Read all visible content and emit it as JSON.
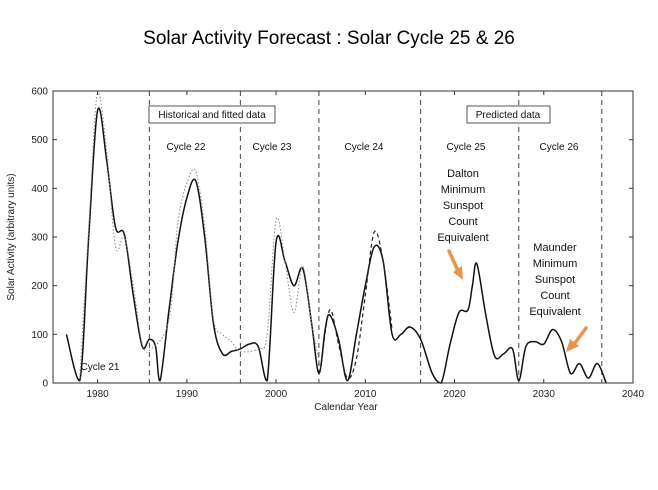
{
  "chart_data": {
    "type": "line",
    "title": "Solar Activity Forecast : Solar Cycle 25 & 26",
    "xlabel": "Calendar Year",
    "ylabel": "Solar Activity (arbitrary units)",
    "xlim": [
      1975,
      2040
    ],
    "ylim": [
      0,
      600
    ],
    "x_ticks": [
      1980,
      1990,
      2000,
      2010,
      2020,
      2030,
      2040
    ],
    "y_ticks": [
      0,
      100,
      200,
      300,
      400,
      500,
      600
    ],
    "grid": false,
    "separators": [
      1985.8,
      1996.0,
      2004.8,
      2016.2,
      2027.2,
      2036.5
    ],
    "region_labels": [
      "Historical and fitted data",
      "Predicted data"
    ],
    "cycle_labels": [
      "Cycle 21",
      "Cycle 22",
      "Cycle 23",
      "Cycle 24",
      "Cycle 25",
      "Cycle 26"
    ],
    "annotations": [
      [
        "Dalton",
        "Minimum",
        "Sunspot",
        "Count",
        "Equivalent"
      ],
      [
        "Maunder",
        "Minimum",
        "Sunspot",
        "Count",
        "Equivalent"
      ]
    ],
    "series": [
      {
        "style": "solid",
        "x": [
          1976.5,
          1978,
          1979,
          1980,
          1981,
          1982,
          1983,
          1984,
          1985,
          1985.8,
          1986.5,
          1987,
          1988,
          1989,
          1990,
          1991,
          1992,
          1993,
          1994,
          1995,
          1996,
          1997,
          1998,
          1999,
          2000,
          2001,
          2002,
          2003,
          2004,
          2004.8,
          2005.5,
          2006,
          2007,
          2008,
          2009,
          2010,
          2011,
          2012,
          2013,
          2014,
          2015,
          2016.2,
          2017.5,
          2018.5,
          2019.5,
          2020.5,
          2021.5,
          2022,
          2022.5,
          2023.5,
          2024.5,
          2025.5,
          2026.5,
          2027.2,
          2028,
          2029,
          2030,
          2031,
          2032,
          2033,
          2034,
          2035,
          2036,
          2037
        ],
        "y": [
          100,
          5,
          300,
          560,
          460,
          320,
          305,
          180,
          75,
          90,
          75,
          5,
          150,
          290,
          380,
          415,
          300,
          120,
          60,
          65,
          70,
          80,
          75,
          5,
          290,
          250,
          200,
          235,
          120,
          20,
          110,
          140,
          90,
          5,
          100,
          200,
          280,
          250,
          100,
          100,
          115,
          90,
          20,
          0,
          80,
          145,
          150,
          200,
          245,
          140,
          55,
          60,
          70,
          5,
          75,
          85,
          80,
          110,
          85,
          20,
          40,
          10,
          40,
          0
        ]
      },
      {
        "style": "dotted",
        "x": [
          1978,
          1979,
          1980,
          1981,
          1982,
          1983,
          1984,
          1985,
          1986,
          1988,
          1989,
          1990,
          1991,
          1992,
          1993,
          1994,
          1995,
          1996,
          1998,
          1999,
          2000,
          2001,
          2002,
          2003,
          2004,
          2005
        ],
        "y": [
          10,
          320,
          600,
          480,
          280,
          300,
          200,
          80,
          70,
          130,
          330,
          410,
          435,
          320,
          130,
          100,
          85,
          65,
          70,
          100,
          335,
          250,
          145,
          240,
          120,
          30
        ]
      },
      {
        "style": "dashed",
        "x": [
          2005,
          2006,
          2007,
          2008,
          2009,
          2010,
          2011,
          2012,
          2013
        ],
        "y": [
          30,
          150,
          80,
          10,
          50,
          180,
          310,
          250,
          110
        ]
      }
    ]
  }
}
